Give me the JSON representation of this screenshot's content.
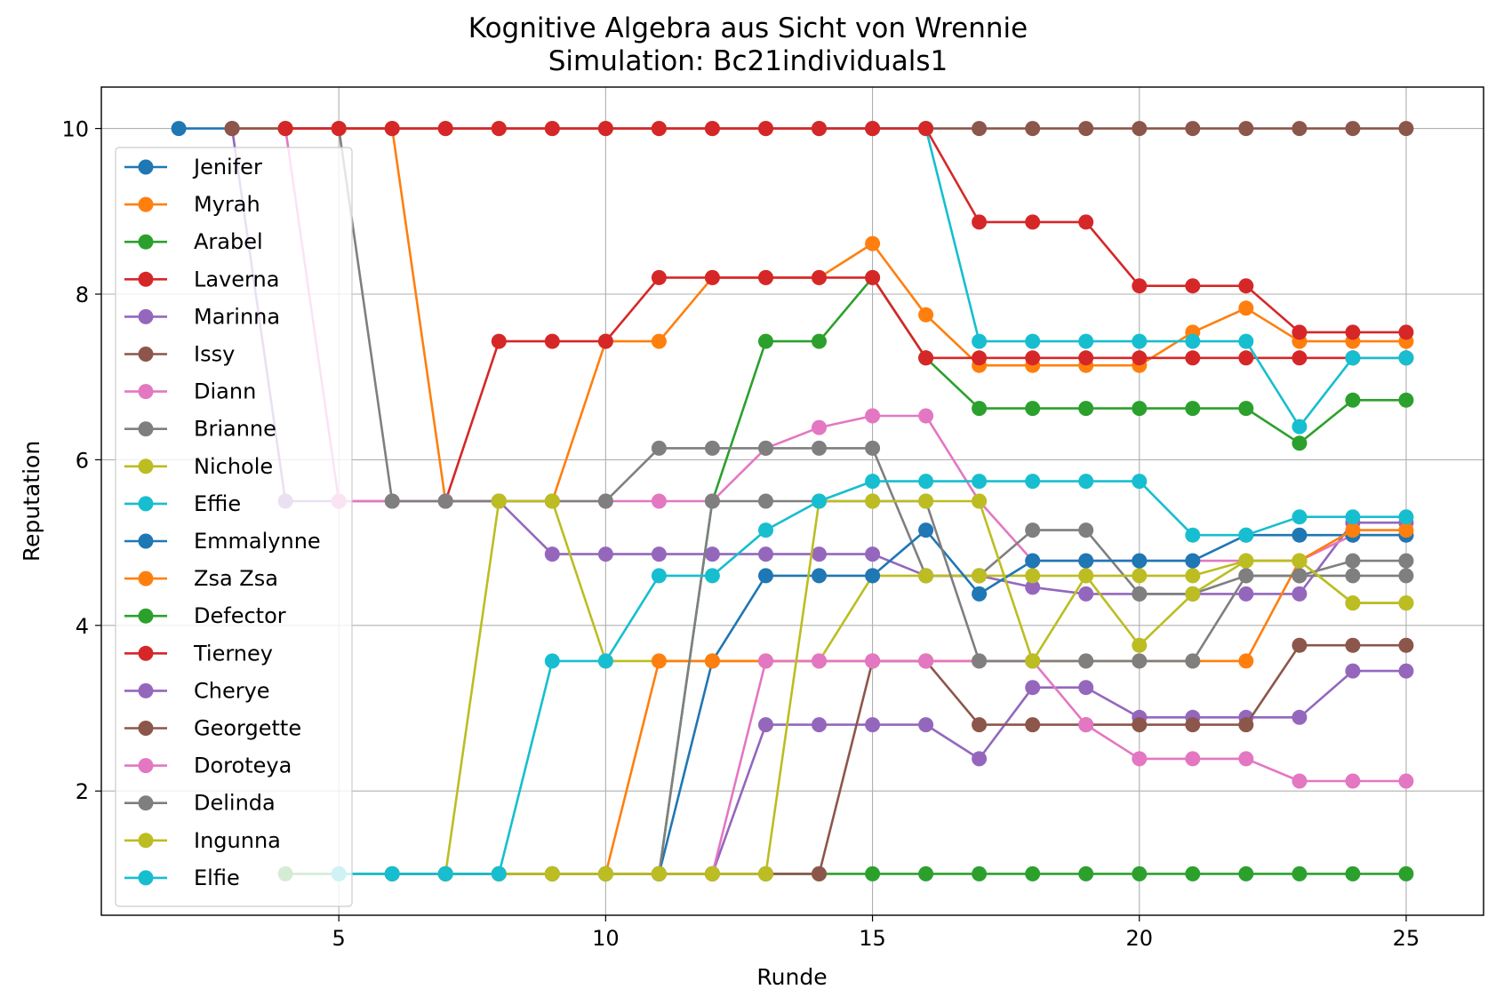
{
  "chart_data": {
    "type": "line",
    "title": "Kognitive Algebra aus Sicht von Wrennie",
    "subtitle": "Simulation: Bc21individuals1",
    "xlabel": "Runde",
    "ylabel": "Reputation",
    "xlim": [
      0.55,
      26.45
    ],
    "ylim": [
      0.5,
      10.5
    ],
    "xticks": [
      5,
      10,
      15,
      20,
      25
    ],
    "yticks": [
      2,
      4,
      6,
      8,
      10
    ],
    "grid": true,
    "legend_position": "left",
    "series": [
      {
        "name": "Jenifer",
        "color": "#1f77b4",
        "x": [
          2,
          3
        ],
        "y": [
          10,
          10
        ]
      },
      {
        "name": "Myrah",
        "color": "#ff7f0e",
        "x": [
          3,
          4,
          5,
          6,
          7,
          8,
          9,
          10,
          11,
          12,
          13,
          14,
          15,
          16,
          17,
          18,
          19,
          20,
          21,
          22,
          23,
          24,
          25
        ],
        "y": [
          10,
          10,
          10,
          10,
          5.5,
          5.5,
          5.5,
          7.43,
          7.43,
          8.2,
          8.2,
          8.2,
          8.61,
          7.75,
          7.14,
          7.14,
          7.14,
          7.14,
          7.54,
          7.83,
          7.43,
          7.43,
          7.43
        ]
      },
      {
        "name": "Arabel",
        "color": "#2ca02c",
        "x": [
          11,
          12,
          13,
          14,
          15,
          16,
          17,
          18,
          19,
          20,
          21,
          22,
          23,
          24,
          25
        ],
        "y": [
          1,
          5.5,
          7.43,
          7.43,
          8.2,
          7.23,
          6.62,
          6.62,
          6.62,
          6.62,
          6.62,
          6.62,
          6.2,
          6.72,
          6.72
        ]
      },
      {
        "name": "Laverna",
        "color": "#d62728",
        "x": [
          7,
          8,
          9,
          10,
          11,
          12,
          13,
          14,
          15,
          16,
          17,
          18,
          19,
          20,
          21,
          22,
          23,
          24,
          25
        ],
        "y": [
          5.5,
          7.43,
          7.43,
          7.43,
          8.2,
          8.2,
          8.2,
          8.2,
          8.2,
          7.23,
          7.23,
          7.23,
          7.23,
          7.23,
          7.23,
          7.23,
          7.23,
          7.23,
          7.23
        ]
      },
      {
        "name": "Marinna",
        "color": "#9467bd",
        "x": [
          3,
          4,
          5,
          6,
          7,
          8,
          9,
          10,
          11,
          12,
          13,
          14,
          15,
          16,
          17,
          18,
          19,
          20,
          21,
          22,
          23,
          24,
          25
        ],
        "y": [
          10,
          5.5,
          5.5,
          5.5,
          5.5,
          5.5,
          4.86,
          4.86,
          4.86,
          4.86,
          4.86,
          4.86,
          4.86,
          4.6,
          4.6,
          4.46,
          4.38,
          4.38,
          4.38,
          4.38,
          4.38,
          5.24,
          5.24
        ]
      },
      {
        "name": "Issy",
        "color": "#8c564b",
        "x": [
          3,
          4,
          5,
          6,
          7,
          8,
          9,
          10,
          11,
          12,
          13,
          14,
          15,
          16,
          17,
          18,
          19,
          20,
          21,
          22,
          23,
          24,
          25
        ],
        "y": [
          10,
          10,
          10,
          10,
          10,
          10,
          10,
          10,
          10,
          10,
          10,
          10,
          10,
          10,
          10,
          10,
          10,
          10,
          10,
          10,
          10,
          10,
          10
        ]
      },
      {
        "name": "Diann",
        "color": "#e377c2",
        "x": [
          4,
          5,
          6,
          7,
          8,
          9,
          10,
          11,
          12,
          13,
          14,
          15,
          16,
          17,
          18,
          19,
          20,
          21,
          22,
          23,
          24,
          25
        ],
        "y": [
          10,
          5.5,
          5.5,
          5.5,
          5.5,
          5.5,
          5.5,
          5.5,
          5.5,
          6.14,
          6.39,
          6.53,
          6.53,
          5.5,
          4.78,
          4.78,
          4.78,
          4.78,
          4.78,
          4.78,
          5.09,
          5.09
        ]
      },
      {
        "name": "Brianne",
        "color": "#7f7f7f",
        "x": [
          4,
          5,
          6,
          7,
          8,
          9,
          10,
          11,
          12,
          13,
          14,
          15,
          16,
          17,
          18,
          19,
          20,
          21,
          22,
          23,
          24,
          25
        ],
        "y": [
          10,
          10,
          5.5,
          5.5,
          5.5,
          5.5,
          5.5,
          6.14,
          6.14,
          6.14,
          6.14,
          6.14,
          4.6,
          4.6,
          5.15,
          5.15,
          4.38,
          4.38,
          4.6,
          4.6,
          4.6,
          4.6
        ]
      },
      {
        "name": "Nichole",
        "color": "#bcbd22",
        "x": [
          7,
          8,
          9,
          10,
          11,
          12,
          13,
          14,
          15,
          16,
          17,
          18,
          19,
          20,
          21,
          22,
          23,
          24,
          25
        ],
        "y": [
          1,
          5.5,
          5.5,
          3.57,
          3.57,
          3.57,
          3.57,
          3.57,
          4.6,
          4.6,
          4.6,
          4.6,
          4.6,
          4.6,
          4.6,
          4.78,
          4.78,
          4.27,
          4.27
        ]
      },
      {
        "name": "Effie",
        "color": "#17becf",
        "x": [
          14,
          15,
          16,
          17,
          18,
          19,
          20,
          21,
          22,
          23,
          24,
          25
        ],
        "y": [
          10,
          10,
          10,
          7.43,
          7.43,
          7.43,
          7.43,
          7.43,
          7.43,
          6.4,
          7.23,
          7.23
        ]
      },
      {
        "name": "Emmalynne",
        "color": "#1f77b4",
        "x": [
          11,
          12,
          13,
          14,
          15,
          16,
          17,
          18,
          19,
          20,
          21,
          22,
          23,
          24,
          25
        ],
        "y": [
          1,
          3.57,
          4.6,
          4.6,
          4.6,
          5.15,
          4.38,
          4.78,
          4.78,
          4.78,
          4.78,
          5.09,
          5.09,
          5.09,
          5.09
        ]
      },
      {
        "name": "Zsa Zsa",
        "color": "#ff7f0e",
        "x": [
          10,
          11,
          12,
          13,
          14,
          15,
          16,
          17,
          18,
          19,
          20,
          21,
          22,
          23,
          24,
          25
        ],
        "y": [
          1,
          3.57,
          3.57,
          3.57,
          3.57,
          3.57,
          3.57,
          3.57,
          3.57,
          3.57,
          3.57,
          3.57,
          3.57,
          4.78,
          5.15,
          5.15
        ]
      },
      {
        "name": "Defector",
        "color": "#2ca02c",
        "x": [
          4,
          5,
          6,
          7,
          8,
          9,
          10,
          11,
          12,
          13,
          14,
          15,
          16,
          17,
          18,
          19,
          20,
          21,
          22,
          23,
          24,
          25
        ],
        "y": [
          1,
          1,
          1,
          1,
          1,
          1,
          1,
          1,
          1,
          1,
          1,
          1,
          1,
          1,
          1,
          1,
          1,
          1,
          1,
          1,
          1,
          1
        ]
      },
      {
        "name": "Tierney",
        "color": "#d62728",
        "x": [
          4,
          5,
          6,
          7,
          8,
          9,
          10,
          11,
          12,
          13,
          14,
          15,
          16,
          17,
          18,
          19,
          20,
          21,
          22,
          23,
          24,
          25
        ],
        "y": [
          10,
          10,
          10,
          10,
          10,
          10,
          10,
          10,
          10,
          10,
          10,
          10,
          10,
          8.87,
          8.87,
          8.87,
          8.1,
          8.1,
          8.1,
          7.54,
          7.54,
          7.54
        ]
      },
      {
        "name": "Cherye",
        "color": "#9467bd",
        "x": [
          12,
          13,
          14,
          15,
          16,
          17,
          18,
          19,
          20,
          21,
          22,
          23,
          24,
          25
        ],
        "y": [
          1,
          2.8,
          2.8,
          2.8,
          2.8,
          2.39,
          3.25,
          3.25,
          2.89,
          2.89,
          2.89,
          2.89,
          3.45,
          3.45
        ]
      },
      {
        "name": "Georgette",
        "color": "#8c564b",
        "x": [
          6,
          7,
          8,
          9,
          10,
          11,
          12,
          13,
          14,
          15,
          16,
          17,
          18,
          19,
          20,
          21,
          22,
          23,
          24,
          25
        ],
        "y": [
          1,
          1,
          1,
          1,
          1,
          1,
          1,
          1,
          1,
          3.57,
          3.57,
          2.8,
          2.8,
          2.8,
          2.8,
          2.8,
          2.8,
          3.76,
          3.76,
          3.76
        ]
      },
      {
        "name": "Doroteya",
        "color": "#e377c2",
        "x": [
          12,
          13,
          14,
          15,
          16,
          17,
          18,
          19,
          20,
          21,
          22,
          23,
          24,
          25
        ],
        "y": [
          1,
          3.57,
          3.57,
          3.57,
          3.57,
          3.57,
          3.57,
          2.8,
          2.39,
          2.39,
          2.39,
          2.12,
          2.12,
          2.12
        ]
      },
      {
        "name": "Delinda",
        "color": "#7f7f7f",
        "x": [
          6,
          7,
          8,
          9,
          10,
          11,
          12,
          13,
          14,
          15,
          16,
          17,
          18,
          19,
          20,
          21,
          22,
          23,
          24,
          25
        ],
        "y": [
          1,
          1,
          1,
          1,
          1,
          1,
          5.5,
          5.5,
          5.5,
          5.5,
          5.5,
          3.57,
          3.57,
          3.57,
          3.57,
          3.57,
          4.6,
          4.6,
          4.78,
          4.78
        ]
      },
      {
        "name": "Ingunna",
        "color": "#bcbd22",
        "x": [
          8,
          9,
          10,
          11,
          12,
          13,
          14,
          15,
          16,
          17,
          18,
          19,
          20,
          21,
          22,
          23,
          24,
          25
        ],
        "y": [
          1,
          1,
          1,
          1,
          1,
          1,
          5.5,
          5.5,
          5.5,
          5.5,
          3.57,
          4.6,
          3.76,
          4.38,
          4.78,
          4.78,
          4.27,
          4.27
        ]
      },
      {
        "name": "Elfie",
        "color": "#17becf",
        "x": [
          5,
          6,
          7,
          8,
          9,
          10,
          11,
          12,
          13,
          14,
          15,
          16,
          17,
          18,
          19,
          20,
          21,
          22,
          23,
          24,
          25
        ],
        "y": [
          1,
          1,
          1,
          1,
          3.57,
          3.57,
          4.6,
          4.6,
          5.15,
          5.5,
          5.74,
          5.74,
          5.74,
          5.74,
          5.74,
          5.74,
          5.09,
          5.09,
          5.31,
          5.31,
          5.31
        ]
      }
    ]
  }
}
